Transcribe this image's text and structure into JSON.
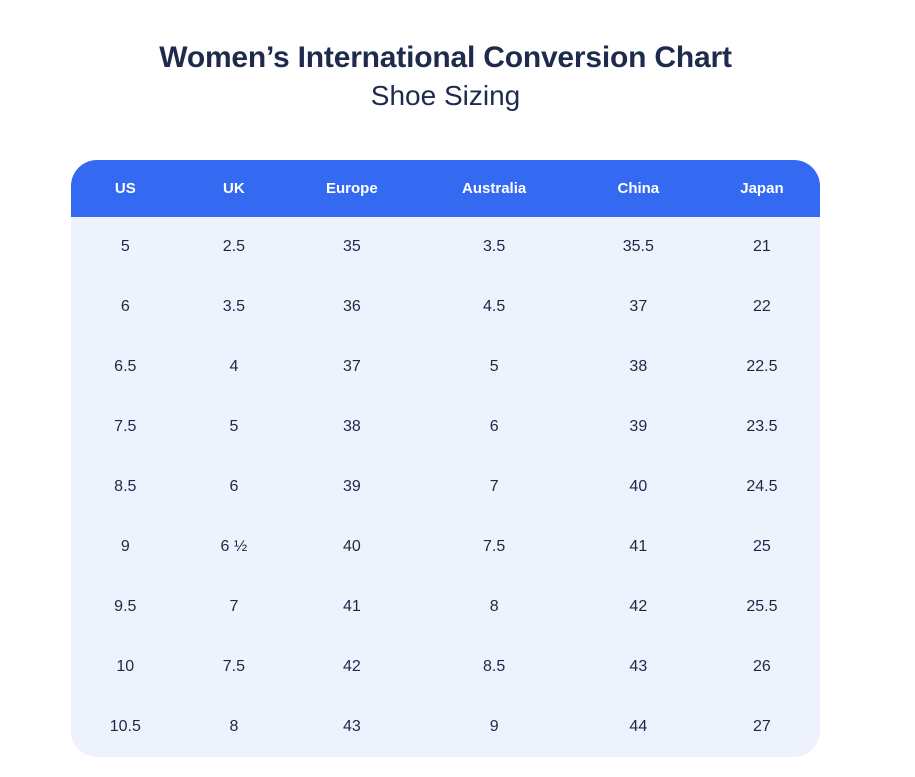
{
  "header": {
    "title": "Women’s International Conversion Chart",
    "subtitle": "Shoe Sizing"
  },
  "chart_data": {
    "type": "table",
    "title": "Women’s International Conversion Chart",
    "subtitle": "Shoe Sizing",
    "columns": [
      "US",
      "UK",
      "Europe",
      "Australia",
      "China",
      "Japan"
    ],
    "rows": [
      [
        "5",
        "2.5",
        "35",
        "3.5",
        "35.5",
        "21"
      ],
      [
        "6",
        "3.5",
        "36",
        "4.5",
        "37",
        "22"
      ],
      [
        "6.5",
        "4",
        "37",
        "5",
        "38",
        "22.5"
      ],
      [
        "7.5",
        "5",
        "38",
        "6",
        "39",
        "23.5"
      ],
      [
        "8.5",
        "6",
        "39",
        "7",
        "40",
        "24.5"
      ],
      [
        "9",
        "6 ½",
        "40",
        "7.5",
        "41",
        "25"
      ],
      [
        "9.5",
        "7",
        "41",
        "8",
        "42",
        "25.5"
      ],
      [
        "10",
        "7.5",
        "42",
        "8.5",
        "43",
        "26"
      ],
      [
        "10.5",
        "8",
        "43",
        "9",
        "44",
        "27"
      ]
    ],
    "layout": {
      "column_widths_pct": [
        14.5,
        14.5,
        17,
        21,
        17.5,
        15.5
      ],
      "legend": "none",
      "grid": "off"
    }
  },
  "colors": {
    "page_bg": "#ffffff",
    "header_bg": "#3469f2",
    "header_text": "#ffffff",
    "body_bg": "#edf2fc",
    "cell_text": "#1b2947",
    "title_text": "#1f2b4d"
  }
}
